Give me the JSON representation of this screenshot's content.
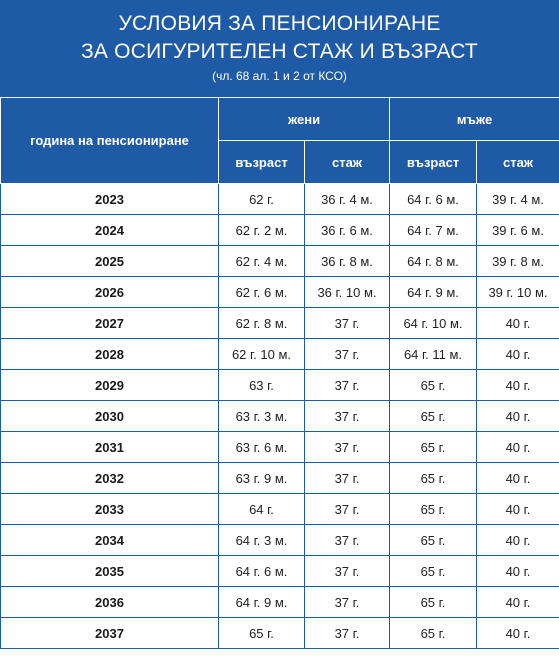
{
  "banner": {
    "title_line1": "УСЛОВИЯ ЗА ПЕНСИОНИРАНЕ",
    "title_line2": "ЗА ОСИГУРИТЕЛЕН СТАЖ И ВЪЗРАСТ",
    "subtitle": "(чл. 68 ал. 1 и 2 от КСО)"
  },
  "table": {
    "year_header": "година на пенсиониране",
    "women_header": "жени",
    "men_header": "мъже",
    "age_header": "възраст",
    "service_header": "стаж",
    "rows": [
      {
        "year": "2023",
        "w_age": "62 г.",
        "w_service": "36 г. 4 м.",
        "m_age": "64 г. 6 м.",
        "m_service": "39 г. 4 м."
      },
      {
        "year": "2024",
        "w_age": "62 г. 2 м.",
        "w_service": "36 г. 6 м.",
        "m_age": "64 г. 7 м.",
        "m_service": "39 г. 6 м."
      },
      {
        "year": "2025",
        "w_age": "62 г. 4 м.",
        "w_service": "36 г. 8 м.",
        "m_age": "64 г. 8 м.",
        "m_service": "39 г. 8 м."
      },
      {
        "year": "2026",
        "w_age": "62 г. 6 м.",
        "w_service": "36 г. 10 м.",
        "m_age": "64 г. 9 м.",
        "m_service": "39 г. 10 м."
      },
      {
        "year": "2027",
        "w_age": "62 г. 8 м.",
        "w_service": "37 г.",
        "m_age": "64 г. 10 м.",
        "m_service": "40 г."
      },
      {
        "year": "2028",
        "w_age": "62 г. 10 м.",
        "w_service": "37 г.",
        "m_age": "64 г. 11 м.",
        "m_service": "40 г."
      },
      {
        "year": "2029",
        "w_age": "63 г.",
        "w_service": "37 г.",
        "m_age": "65 г.",
        "m_service": "40 г."
      },
      {
        "year": "2030",
        "w_age": "63 г. 3 м.",
        "w_service": "37 г.",
        "m_age": "65 г.",
        "m_service": "40 г."
      },
      {
        "year": "2031",
        "w_age": "63 г. 6 м.",
        "w_service": "37 г.",
        "m_age": "65 г.",
        "m_service": "40 г."
      },
      {
        "year": "2032",
        "w_age": "63 г. 9 м.",
        "w_service": "37 г.",
        "m_age": "65 г.",
        "m_service": "40 г."
      },
      {
        "year": "2033",
        "w_age": "64 г.",
        "w_service": "37 г.",
        "m_age": "65 г.",
        "m_service": "40 г."
      },
      {
        "year": "2034",
        "w_age": "64 г. 3 м.",
        "w_service": "37 г.",
        "m_age": "65 г.",
        "m_service": "40 г."
      },
      {
        "year": "2035",
        "w_age": "64 г. 6 м.",
        "w_service": "37 г.",
        "m_age": "65 г.",
        "m_service": "40 г."
      },
      {
        "year": "2036",
        "w_age": "64 г. 9 м.",
        "w_service": "37 г.",
        "m_age": "65 г.",
        "m_service": "40 г."
      },
      {
        "year": "2037",
        "w_age": "65 г.",
        "w_service": "37 г.",
        "m_age": "65 г.",
        "m_service": "40 г."
      }
    ]
  }
}
